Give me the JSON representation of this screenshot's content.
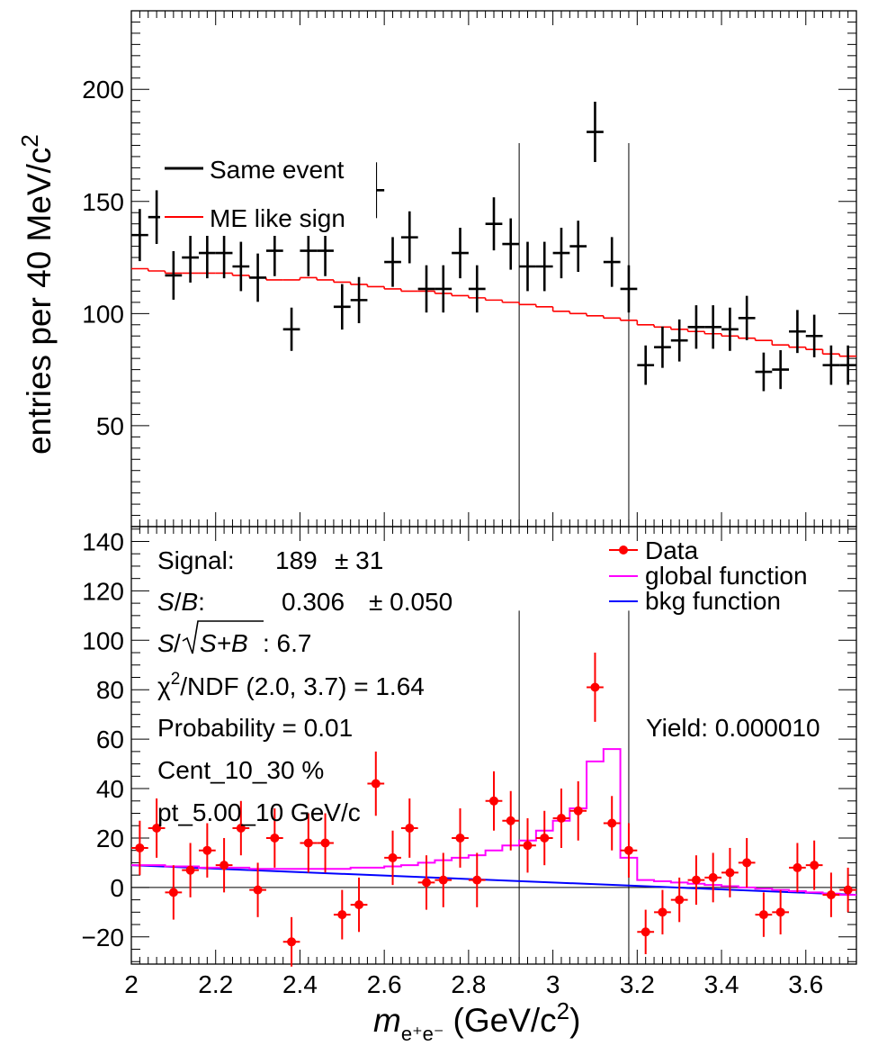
{
  "chart_data": [
    {
      "type": "scatter",
      "panel": "top",
      "ylabel": "entries per 40 MeV/c",
      "ylabel_sup": "2",
      "ylim": [
        5,
        235
      ],
      "xlim": [
        2.0,
        3.72
      ],
      "yticks": [
        50,
        100,
        150,
        200
      ],
      "legend": {
        "placement": "top-left",
        "items": [
          {
            "label": "Same event",
            "color": "#000000"
          },
          {
            "label": "ME like sign",
            "color": "#ff0000"
          }
        ]
      },
      "signal_window": [
        2.92,
        3.18
      ],
      "series": [
        {
          "name": "Same event",
          "color": "#000000",
          "x": [
            2.02,
            2.06,
            2.1,
            2.14,
            2.18,
            2.22,
            2.26,
            2.3,
            2.34,
            2.38,
            2.42,
            2.46,
            2.5,
            2.54,
            2.58,
            2.62,
            2.66,
            2.7,
            2.74,
            2.78,
            2.82,
            2.86,
            2.9,
            2.94,
            2.98,
            3.02,
            3.06,
            3.1,
            3.14,
            3.18,
            3.22,
            3.26,
            3.3,
            3.34,
            3.38,
            3.42,
            3.46,
            3.5,
            3.54,
            3.58,
            3.62,
            3.66,
            3.7
          ],
          "y": [
            135,
            143,
            117,
            125,
            127,
            127,
            121,
            116,
            128,
            93,
            128,
            128,
            103,
            106,
            155,
            123,
            134,
            111,
            111,
            127,
            111,
            140,
            131,
            121,
            121,
            127,
            130,
            181,
            123,
            111,
            77,
            85,
            88,
            94,
            94,
            93,
            98,
            74,
            75,
            92,
            90,
            77,
            77
          ]
        },
        {
          "name": "ME like sign",
          "color": "#ff0000",
          "x": [
            2.02,
            2.06,
            2.1,
            2.14,
            2.18,
            2.22,
            2.26,
            2.3,
            2.34,
            2.38,
            2.42,
            2.46,
            2.5,
            2.54,
            2.58,
            2.62,
            2.66,
            2.7,
            2.74,
            2.78,
            2.82,
            2.86,
            2.9,
            2.94,
            2.98,
            3.02,
            3.06,
            3.1,
            3.14,
            3.18,
            3.22,
            3.26,
            3.3,
            3.34,
            3.38,
            3.42,
            3.46,
            3.5,
            3.54,
            3.58,
            3.62,
            3.66,
            3.7
          ],
          "y": [
            120,
            119,
            118,
            118,
            118,
            118,
            117,
            116,
            115,
            115,
            116,
            115,
            114,
            113,
            112,
            111,
            110,
            110,
            109,
            108,
            107,
            106,
            105,
            104,
            103,
            101,
            100,
            99,
            98,
            97,
            95,
            94,
            93,
            92,
            91,
            90,
            89,
            88,
            86,
            85,
            84,
            82,
            81
          ]
        }
      ]
    },
    {
      "type": "scatter",
      "panel": "bottom",
      "xlabel": "m",
      "xlabel_sub": "e⁺e⁻",
      "xlabel_unit": "(GeV/c",
      "xlabel_sup": "2",
      "xlabel_end": ")",
      "xlim": [
        2.0,
        3.72
      ],
      "ylim": [
        -31,
        146
      ],
      "yticks": [
        -20,
        0,
        20,
        40,
        60,
        80,
        100,
        120,
        140
      ],
      "ytick_labels": [
        "−20",
        "0",
        "20",
        "40",
        "60",
        "80",
        "100",
        "120",
        "140"
      ],
      "xticks": [
        2,
        2.2,
        2.4,
        2.6,
        2.8,
        3,
        3.2,
        3.4,
        3.6
      ],
      "xtick_labels": [
        "2",
        "2.2",
        "2.4",
        "2.6",
        "2.8",
        "3",
        "3.2",
        "3.4",
        "3.6"
      ],
      "legend": {
        "placement": "top-right",
        "items": [
          {
            "label": "Data",
            "color": "#ff0000"
          },
          {
            "label": "global function",
            "color": "#ff00ff"
          },
          {
            "label": "bkg function",
            "color": "#0000ff"
          }
        ]
      },
      "signal_window": [
        2.92,
        3.18
      ],
      "series": [
        {
          "name": "Data",
          "color": "#ff0000",
          "x": [
            2.02,
            2.06,
            2.1,
            2.14,
            2.18,
            2.22,
            2.26,
            2.3,
            2.34,
            2.38,
            2.42,
            2.46,
            2.5,
            2.54,
            2.58,
            2.62,
            2.66,
            2.7,
            2.74,
            2.78,
            2.82,
            2.86,
            2.9,
            2.94,
            2.98,
            3.02,
            3.06,
            3.1,
            3.14,
            3.18,
            3.22,
            3.26,
            3.3,
            3.34,
            3.38,
            3.42,
            3.46,
            3.5,
            3.54,
            3.58,
            3.62,
            3.66,
            3.7
          ],
          "y": [
            16,
            24,
            -2,
            7,
            15,
            9,
            24,
            -1,
            20,
            -22,
            18,
            18,
            -11,
            -7,
            42,
            12,
            24,
            2,
            3,
            20,
            3,
            35,
            27,
            17,
            20,
            28,
            31,
            81,
            26,
            15,
            -18,
            -10,
            -5,
            3,
            4,
            6,
            10,
            -11,
            -10,
            8,
            9,
            -3,
            -1
          ],
          "err": [
            11,
            12,
            11,
            11,
            11,
            11,
            11,
            11,
            12,
            10,
            12,
            12,
            10,
            11,
            13,
            11,
            12,
            11,
            11,
            12,
            11,
            12,
            12,
            11,
            11,
            12,
            12,
            14,
            11,
            11,
            9,
            9,
            9,
            10,
            10,
            10,
            10,
            9,
            9,
            10,
            10,
            9,
            9
          ]
        },
        {
          "name": "global function",
          "color": "#ff00ff",
          "x": [
            2.0,
            2.04,
            2.08,
            2.12,
            2.16,
            2.2,
            2.24,
            2.28,
            2.32,
            2.36,
            2.4,
            2.44,
            2.48,
            2.52,
            2.56,
            2.6,
            2.64,
            2.68,
            2.72,
            2.76,
            2.8,
            2.84,
            2.88,
            2.92,
            2.96,
            3.0,
            3.04,
            3.08,
            3.12,
            3.16,
            3.2,
            3.24,
            3.28,
            3.32,
            3.36,
            3.4,
            3.44,
            3.48,
            3.52,
            3.56,
            3.6,
            3.64,
            3.68
          ],
          "y": [
            9,
            9,
            8.5,
            8.5,
            8,
            8,
            8,
            7.5,
            7.5,
            7.5,
            7.5,
            7.5,
            7.5,
            8,
            8,
            8.5,
            9,
            10,
            11,
            12,
            13,
            15,
            17,
            19,
            23,
            27,
            32,
            51,
            56,
            12,
            3,
            2.5,
            2,
            1.5,
            1,
            0.5,
            0,
            -0.5,
            -1,
            -1.5,
            -2,
            -2.5,
            -3
          ]
        },
        {
          "name": "bkg function",
          "color": "#0000ff",
          "x": [
            2.0,
            3.72
          ],
          "y": [
            9,
            -3
          ]
        }
      ],
      "fit_box": {
        "signal_label": "Signal:",
        "signal_value": "189",
        "signal_err": "± 31",
        "sb_label_s": "S",
        "sb_label_slash": "/",
        "sb_label_b": "B",
        "sb_label_colon": ":",
        "sb_value": "0.306",
        "sb_err": "± 0.050",
        "signif_s": "S",
        "signif_slash": "/",
        "signif_sqrt_arg": "S+B",
        "signif_value": ": 6.7",
        "chi2_prefix": "χ",
        "chi2_sup": "2",
        "chi2_rest": "/NDF (2.0, 3.7) = 1.64",
        "probability": "Probability = 0.01",
        "centrality": "Cent_10_30 %",
        "pt": "pt_5.00_10 GeV/c",
        "yield": "Yield: 0.000010"
      }
    }
  ]
}
